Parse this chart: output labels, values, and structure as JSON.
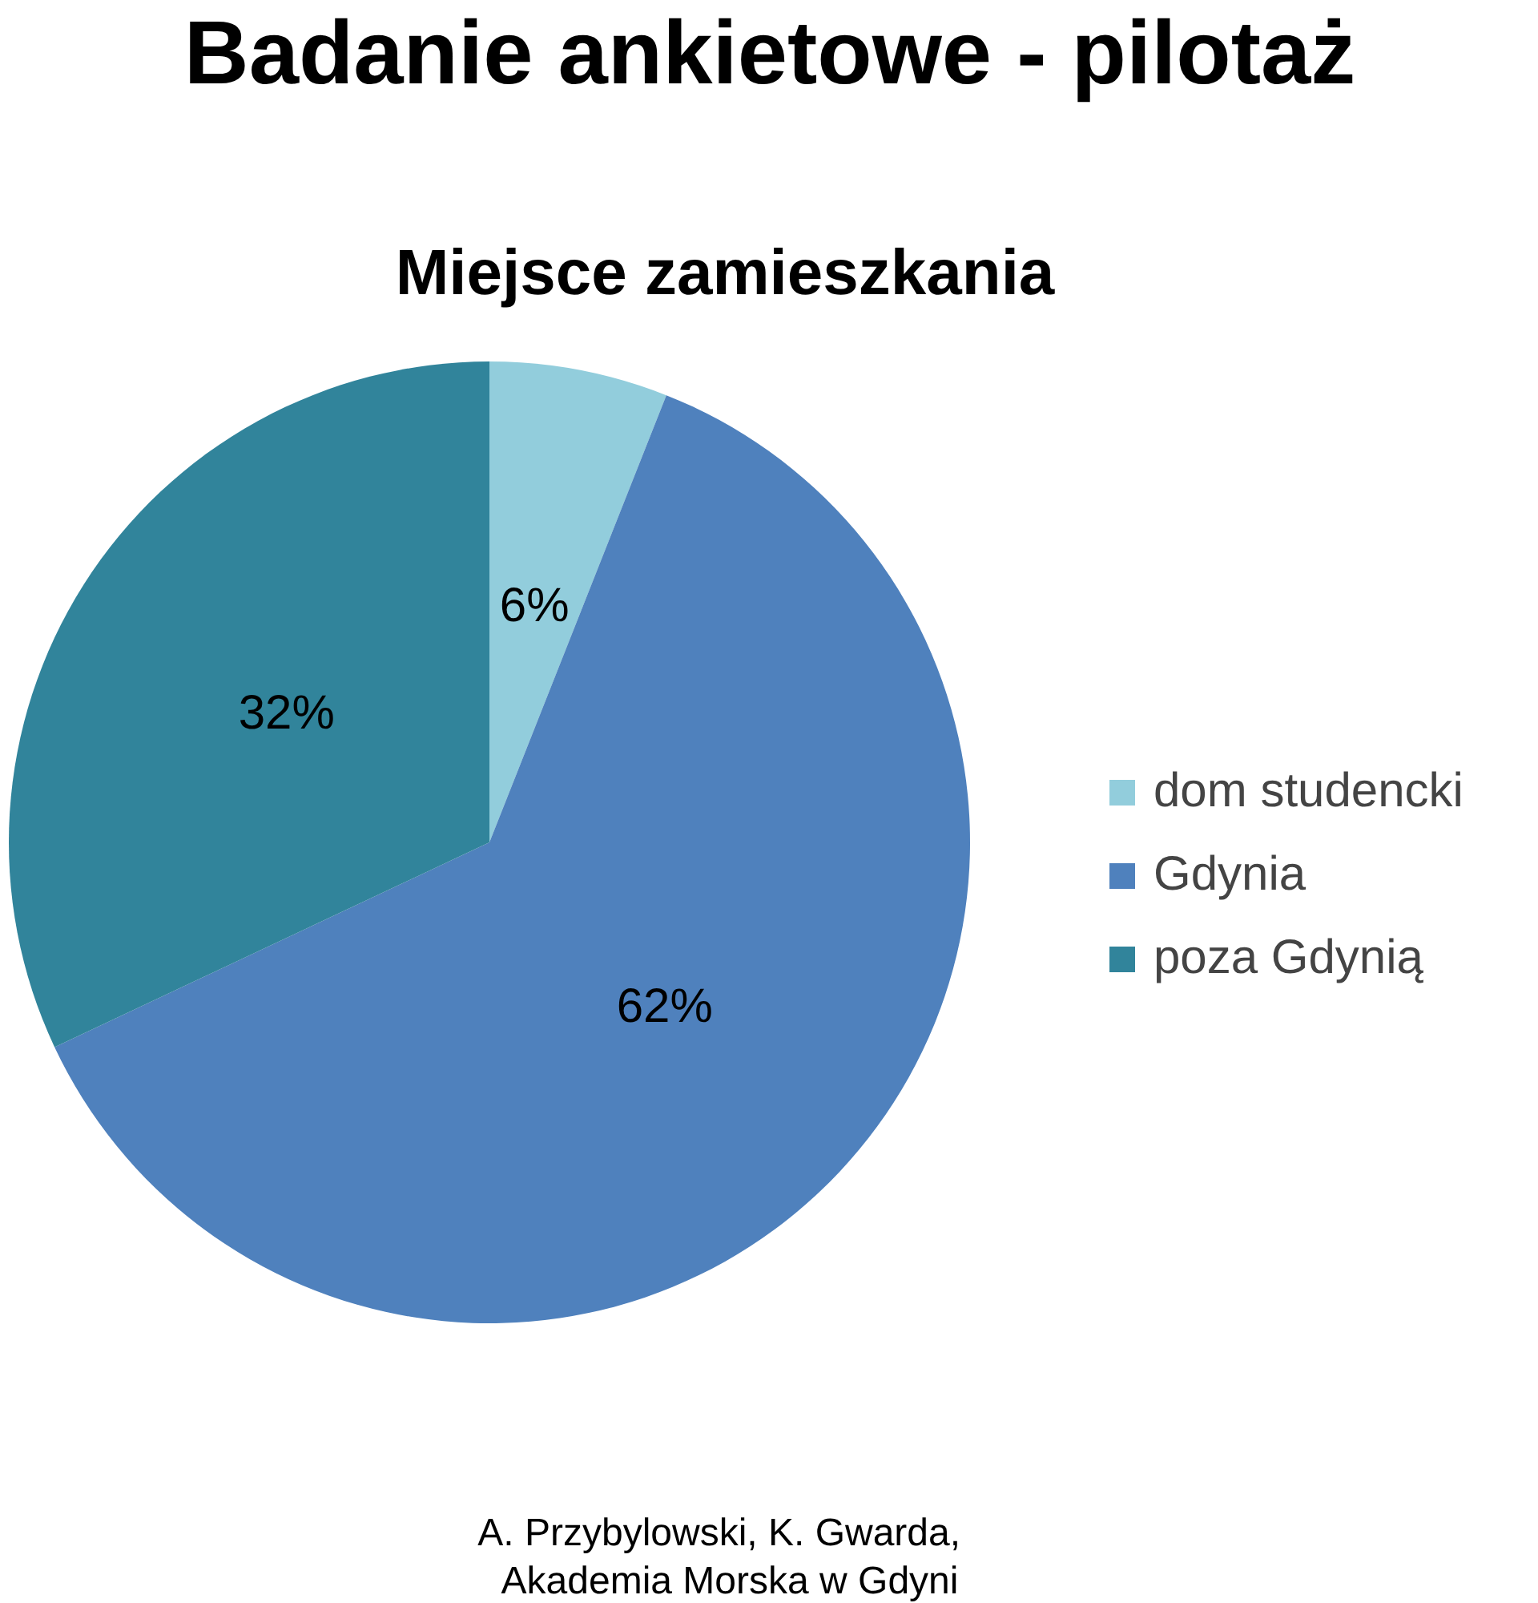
{
  "chart_data": {
    "type": "pie",
    "title": "Badanie ankietowe - pilotaż",
    "subtitle": "Miejsce zamieszkania",
    "categories": [
      "dom studencki",
      "Gdynia",
      "poza Gdynią"
    ],
    "values": [
      6,
      62,
      32
    ],
    "colors": [
      "#92cddc",
      "#4f81bd",
      "#31849b"
    ],
    "value_labels": [
      "6%",
      "62%",
      "32%"
    ],
    "legend": "right",
    "annotations": [
      "A.   Przybylowski, K. Gwarda,",
      "Akademia Morska w Gdyni"
    ]
  }
}
